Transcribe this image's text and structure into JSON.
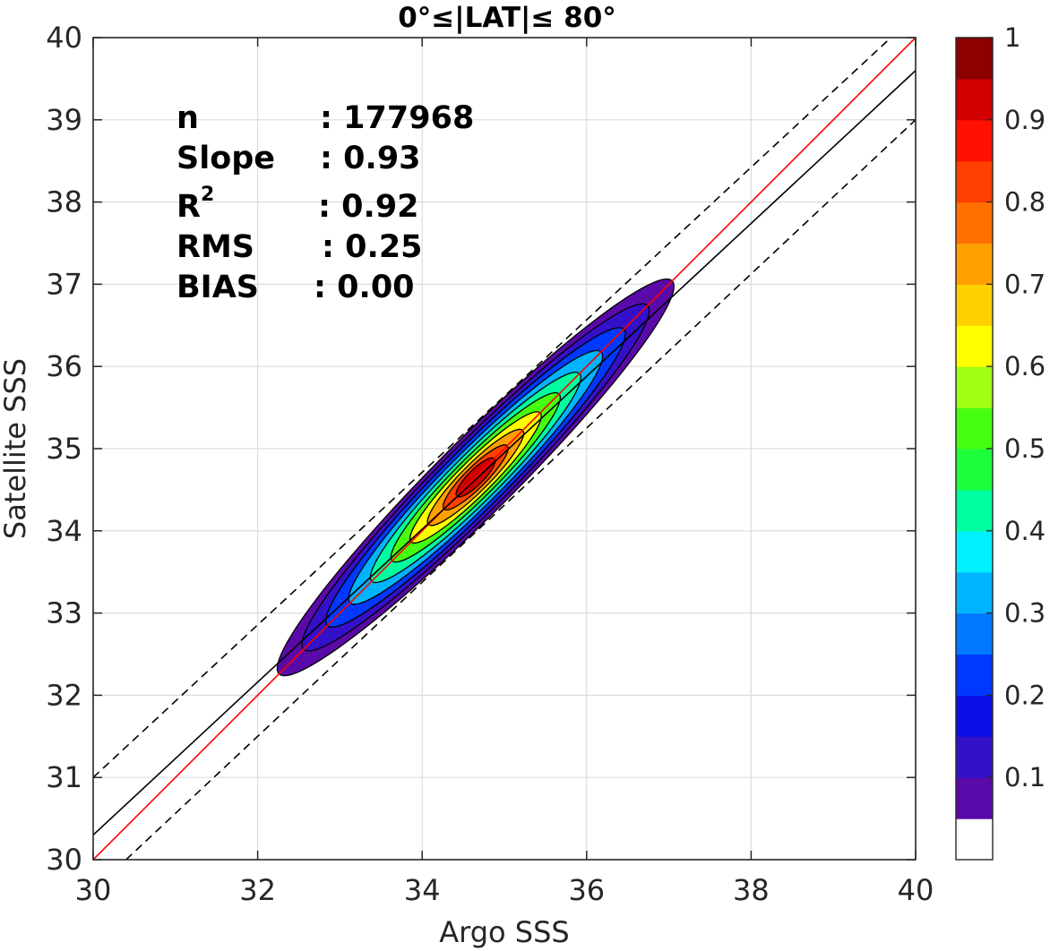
{
  "chart_data": {
    "type": "contour-scatter",
    "title": "0°≤|LAT|≤ 80°",
    "xlabel": "Argo SSS",
    "ylabel": "Satellite SSS",
    "xlim": [
      30,
      40
    ],
    "ylim": [
      30,
      40
    ],
    "x_ticks": [
      "30",
      "32",
      "34",
      "36",
      "38",
      "40"
    ],
    "y_ticks": [
      "30",
      "31",
      "32",
      "33",
      "34",
      "35",
      "36",
      "37",
      "38",
      "39",
      "40"
    ],
    "grid": true,
    "stats": [
      {
        "name": "n",
        "value": ": 177968"
      },
      {
        "name": "Slope",
        "value": ": 0.93"
      },
      {
        "name": "R",
        "sup": "2",
        "value": ": 0.92"
      },
      {
        "name": "RMS",
        "value": ": 0.25"
      },
      {
        "name": "BIAS",
        "value": ": 0.00"
      }
    ],
    "lines": [
      {
        "name": "one-to-one",
        "color": "#ff0000",
        "style": "solid",
        "points": [
          [
            30,
            30
          ],
          [
            40,
            40
          ]
        ]
      },
      {
        "name": "regression",
        "color": "#000000",
        "style": "solid",
        "points": [
          [
            30,
            30.3
          ],
          [
            40,
            39.6
          ]
        ]
      },
      {
        "name": "upper-bound",
        "color": "#000000",
        "style": "dashed",
        "points": [
          [
            30,
            31
          ],
          [
            39.7,
            40
          ]
        ]
      },
      {
        "name": "lower-bound",
        "color": "#000000",
        "style": "dashed",
        "points": [
          [
            30.4,
            30
          ],
          [
            40,
            39
          ]
        ]
      }
    ],
    "density_peak": {
      "x": 34.65,
      "y": 34.65
    },
    "contour_levels": [
      0.05,
      0.1,
      0.2,
      0.3,
      0.4,
      0.5,
      0.6,
      0.7,
      0.8,
      0.9
    ],
    "colorbar": {
      "min": 0,
      "max": 1,
      "ticks": [
        "0.1",
        "0.2",
        "0.3",
        "0.4",
        "0.5",
        "0.6",
        "0.7",
        "0.8",
        "0.9",
        "1"
      ],
      "tick_values": [
        0.1,
        0.2,
        0.3,
        0.4,
        0.5,
        0.6,
        0.7,
        0.8,
        0.9,
        1.0
      ],
      "colors": [
        "#ffffff",
        "#5a0aa8",
        "#3410c8",
        "#0a10e6",
        "#0038ff",
        "#0078ff",
        "#00b4ff",
        "#00f0ff",
        "#00ffa0",
        "#1eff3c",
        "#46ff10",
        "#a0ff14",
        "#ffff00",
        "#ffd000",
        "#ffa000",
        "#ff7000",
        "#ff4000",
        "#ff1000",
        "#d00000",
        "#8c0000"
      ]
    }
  }
}
